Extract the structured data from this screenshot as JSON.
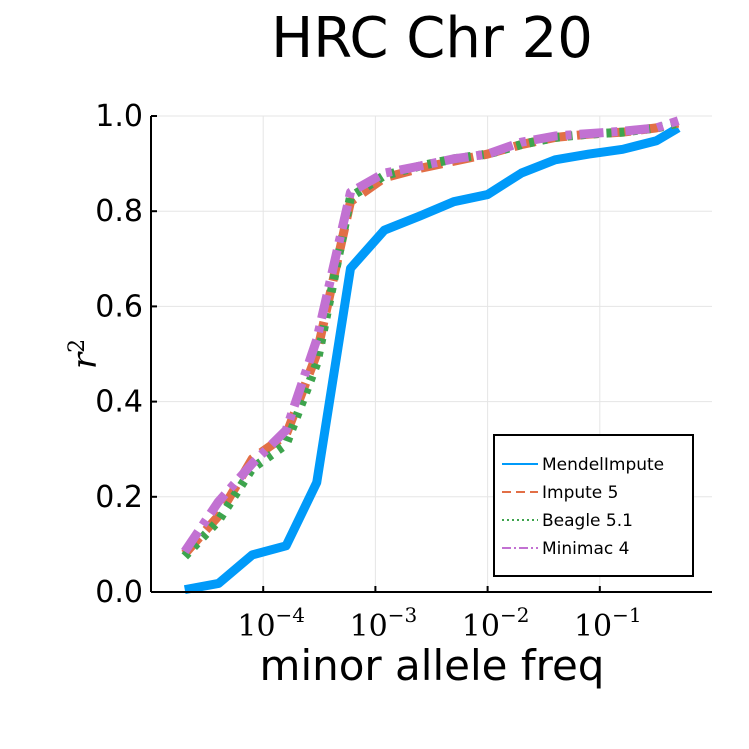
{
  "chart_data": {
    "type": "line",
    "title": "HRC Chr 20",
    "xlabel": "minor allele freq",
    "ylabel": "r",
    "ylabel_superscript": "2",
    "x_scale": "log10",
    "xlim": [
      1e-05,
      1
    ],
    "ylim": [
      0,
      1
    ],
    "yticks": [
      0.0,
      0.2,
      0.4,
      0.6,
      0.8,
      1.0
    ],
    "ytick_labels": [
      "0.0",
      "0.2",
      "0.4",
      "0.6",
      "0.8",
      "1.0"
    ],
    "xticks": [
      0.0001,
      0.001,
      0.01,
      0.1
    ],
    "xtick_labels": [
      {
        "base": "10",
        "exp": "−4"
      },
      {
        "base": "10",
        "exp": "−3"
      },
      {
        "base": "10",
        "exp": "−2"
      },
      {
        "base": "10",
        "exp": "−1"
      }
    ],
    "grid": true,
    "legend_position": "bottom-right",
    "series": [
      {
        "name": "MendelImpute",
        "color": "#009af9",
        "style": "solid",
        "x": [
          2e-05,
          4e-05,
          8e-05,
          0.00016,
          0.0003,
          0.0006,
          0.0012,
          0.0025,
          0.005,
          0.01,
          0.02,
          0.04,
          0.08,
          0.16,
          0.32,
          0.5
        ],
        "y": [
          0.005,
          0.018,
          0.078,
          0.097,
          0.23,
          0.68,
          0.76,
          0.79,
          0.82,
          0.835,
          0.88,
          0.908,
          0.92,
          0.93,
          0.948,
          0.975
        ]
      },
      {
        "name": "Impute 5",
        "color": "#e26f46",
        "style": "dashed",
        "x": [
          2e-05,
          4e-05,
          8e-05,
          0.00016,
          0.0003,
          0.0006,
          0.0012,
          0.0025,
          0.005,
          0.01,
          0.02,
          0.04,
          0.08,
          0.16,
          0.32,
          0.5
        ],
        "y": [
          0.08,
          0.16,
          0.28,
          0.33,
          0.5,
          0.82,
          0.87,
          0.89,
          0.905,
          0.92,
          0.94,
          0.955,
          0.962,
          0.966,
          0.975,
          0.985
        ]
      },
      {
        "name": "Beagle 5.1",
        "color": "#3da44d",
        "style": "dotted",
        "x": [
          2e-05,
          4e-05,
          8e-05,
          0.00016,
          0.0003,
          0.0006,
          0.0012,
          0.0025,
          0.005,
          0.01,
          0.02,
          0.04,
          0.08,
          0.16,
          0.32,
          0.5
        ],
        "y": [
          0.075,
          0.15,
          0.26,
          0.31,
          0.48,
          0.83,
          0.875,
          0.895,
          0.91,
          0.92,
          0.94,
          0.955,
          0.962,
          0.966,
          0.975,
          0.985
        ]
      },
      {
        "name": "Minimac 4",
        "color": "#c271d2",
        "style": "dashdot",
        "x": [
          2e-05,
          4e-05,
          8e-05,
          0.00016,
          0.0003,
          0.0006,
          0.0012,
          0.0025,
          0.005,
          0.01,
          0.02,
          0.04,
          0.08,
          0.16,
          0.32,
          0.5
        ],
        "y": [
          0.085,
          0.19,
          0.27,
          0.34,
          0.53,
          0.84,
          0.88,
          0.895,
          0.91,
          0.92,
          0.945,
          0.958,
          0.963,
          0.968,
          0.975,
          0.99
        ]
      }
    ]
  }
}
